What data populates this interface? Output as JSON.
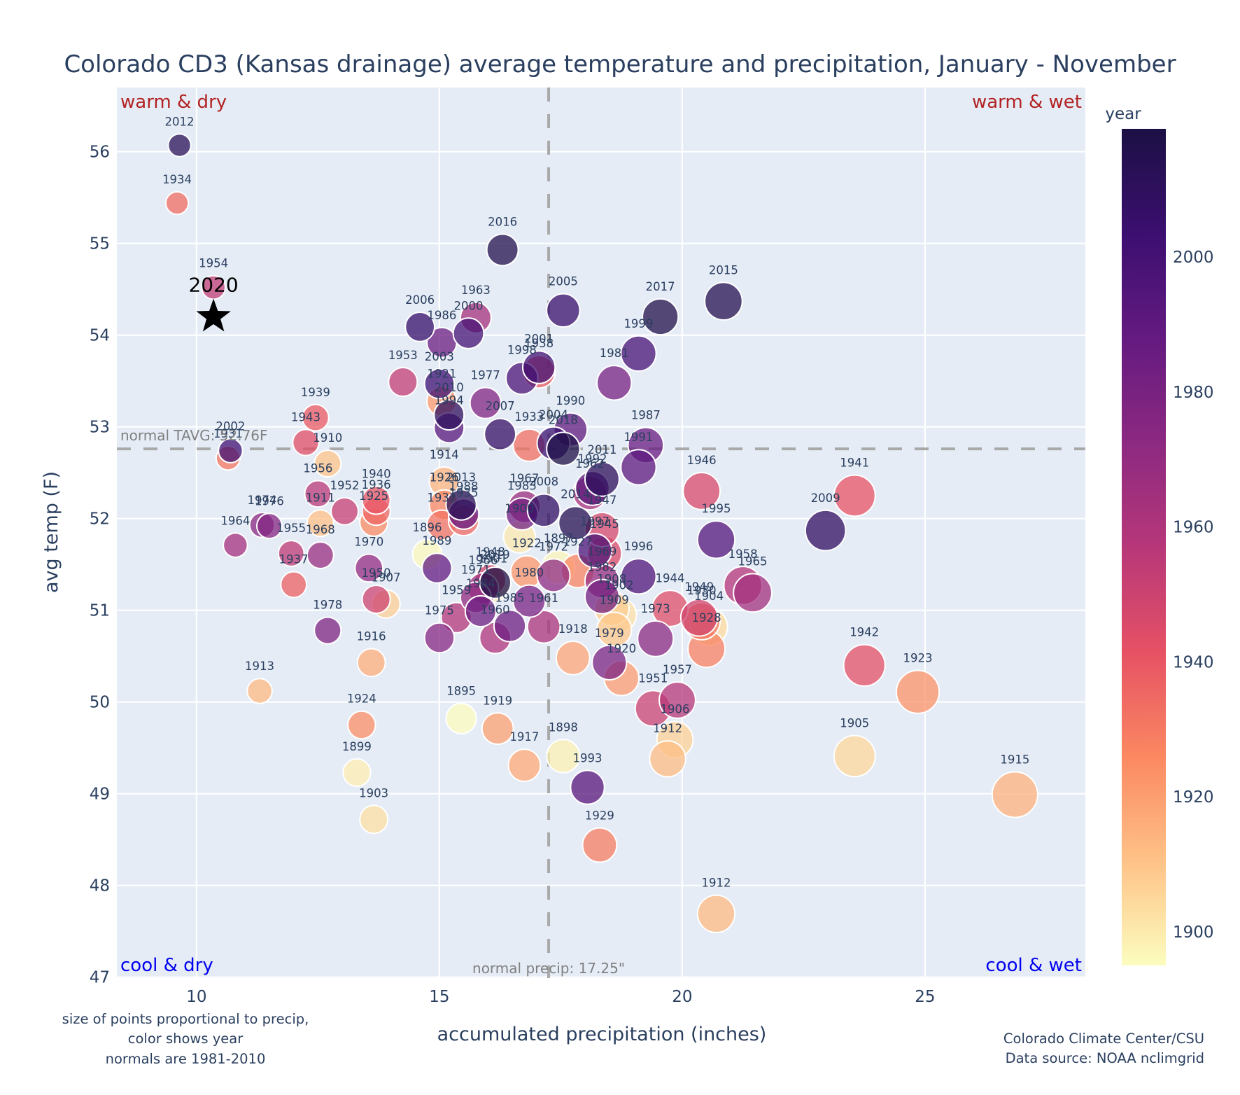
{
  "chart_data": {
    "type": "scatter",
    "title": "Colorado CD3 (Kansas drainage) average temperature and precipitation, January - November",
    "xlabel": "accumulated precipitation (inches)",
    "ylabel": "avg temp (F)",
    "xlim": [
      8.36,
      28.3
    ],
    "ylim": [
      46.99,
      56.7
    ],
    "xticks": [
      10,
      15,
      20,
      25
    ],
    "yticks": [
      47,
      48,
      49,
      50,
      51,
      52,
      53,
      54,
      55,
      56
    ],
    "grid": true,
    "marker_size_meaning": "proportional to precip",
    "color_meaning": "year",
    "colorbar": {
      "title": "year",
      "range": [
        1895,
        2019
      ],
      "ticks": [
        1900,
        1920,
        1940,
        1960,
        1980,
        2000
      ],
      "colorscale": [
        "#fcfdbf",
        "#fec287",
        "#fb8861",
        "#e65164",
        "#b73779",
        "#8c2981",
        "#641a80",
        "#3b0f70",
        "#1c1044"
      ]
    },
    "normals": {
      "tavg": 52.76,
      "tavg_label": "normal TAVG: 52.76F",
      "precip": 17.25,
      "precip_label": "normal precip: 17.25\""
    },
    "quadrant_labels": {
      "warm_dry": "warm & dry",
      "warm_wet": "warm & wet",
      "cool_dry": "cool & dry",
      "cool_wet": "cool & wet"
    },
    "highlight": {
      "label": "2020",
      "x": 10.35,
      "y": 54.2,
      "marker": "star"
    },
    "points": [
      {
        "year": 2012,
        "x": 9.65,
        "y": 56.07
      },
      {
        "year": 1934,
        "x": 9.6,
        "y": 55.44
      },
      {
        "year": 1954,
        "x": 10.35,
        "y": 54.52
      },
      {
        "year": 2002,
        "x": 10.7,
        "y": 52.74
      },
      {
        "year": 1931,
        "x": 10.65,
        "y": 52.66
      },
      {
        "year": 1964,
        "x": 10.8,
        "y": 51.71
      },
      {
        "year": 1974,
        "x": 11.35,
        "y": 51.93
      },
      {
        "year": 1976,
        "x": 11.5,
        "y": 51.92
      },
      {
        "year": 1913,
        "x": 11.3,
        "y": 50.12
      },
      {
        "year": 1955,
        "x": 11.95,
        "y": 51.62
      },
      {
        "year": 1937,
        "x": 12.0,
        "y": 51.28
      },
      {
        "year": 1939,
        "x": 12.45,
        "y": 53.1
      },
      {
        "year": 1943,
        "x": 12.25,
        "y": 52.83
      },
      {
        "year": 1910,
        "x": 12.7,
        "y": 52.6
      },
      {
        "year": 1956,
        "x": 12.5,
        "y": 52.27
      },
      {
        "year": 1911,
        "x": 12.55,
        "y": 51.95
      },
      {
        "year": 1968,
        "x": 12.55,
        "y": 51.6
      },
      {
        "year": 1978,
        "x": 12.7,
        "y": 50.78
      },
      {
        "year": 1952,
        "x": 13.05,
        "y": 52.08
      },
      {
        "year": 1940,
        "x": 13.7,
        "y": 52.2
      },
      {
        "year": 1936,
        "x": 13.7,
        "y": 52.08
      },
      {
        "year": 1925,
        "x": 13.65,
        "y": 51.96
      },
      {
        "year": 1970,
        "x": 13.55,
        "y": 51.46
      },
      {
        "year": 1950,
        "x": 13.7,
        "y": 51.12
      },
      {
        "year": 1907,
        "x": 13.9,
        "y": 51.07
      },
      {
        "year": 1916,
        "x": 13.6,
        "y": 50.43
      },
      {
        "year": 1924,
        "x": 13.4,
        "y": 49.75
      },
      {
        "year": 1899,
        "x": 13.3,
        "y": 49.23
      },
      {
        "year": 1903,
        "x": 13.65,
        "y": 48.72
      },
      {
        "year": 1953,
        "x": 14.25,
        "y": 53.49
      },
      {
        "year": 2006,
        "x": 14.6,
        "y": 54.09
      },
      {
        "year": 1932,
        "x": 15.05,
        "y": 51.93
      },
      {
        "year": 1896,
        "x": 14.75,
        "y": 51.61
      },
      {
        "year": 1989,
        "x": 14.95,
        "y": 51.46
      },
      {
        "year": 1986,
        "x": 15.05,
        "y": 53.92
      },
      {
        "year": 2003,
        "x": 15.0,
        "y": 53.47
      },
      {
        "year": 1921,
        "x": 15.05,
        "y": 53.28
      },
      {
        "year": 2010,
        "x": 15.2,
        "y": 53.13
      },
      {
        "year": 1994,
        "x": 15.2,
        "y": 52.99
      },
      {
        "year": 1914,
        "x": 15.1,
        "y": 52.4
      },
      {
        "year": 1926,
        "x": 15.1,
        "y": 52.15
      },
      {
        "year": 2013,
        "x": 15.45,
        "y": 52.15
      },
      {
        "year": 1988,
        "x": 15.5,
        "y": 52.05
      },
      {
        "year": 1935,
        "x": 15.5,
        "y": 51.98
      },
      {
        "year": 1963,
        "x": 15.75,
        "y": 54.19
      },
      {
        "year": 2000,
        "x": 15.6,
        "y": 54.02
      },
      {
        "year": 1977,
        "x": 15.95,
        "y": 53.26
      },
      {
        "year": 1975,
        "x": 15.0,
        "y": 50.7
      },
      {
        "year": 1959,
        "x": 15.35,
        "y": 50.92
      },
      {
        "year": 1971,
        "x": 15.75,
        "y": 51.14
      },
      {
        "year": 1984,
        "x": 15.85,
        "y": 50.99
      },
      {
        "year": 1966,
        "x": 15.9,
        "y": 51.24
      },
      {
        "year": 1948,
        "x": 16.05,
        "y": 51.33
      },
      {
        "year": 2019,
        "x": 16.15,
        "y": 51.3
      },
      {
        "year": 1901,
        "x": 16.1,
        "y": 51.26
      },
      {
        "year": 1985,
        "x": 16.45,
        "y": 50.83
      },
      {
        "year": 1960,
        "x": 16.15,
        "y": 50.7
      },
      {
        "year": 1895,
        "x": 15.45,
        "y": 49.82
      },
      {
        "year": 1919,
        "x": 16.2,
        "y": 49.71
      },
      {
        "year": 1917,
        "x": 16.75,
        "y": 49.31
      },
      {
        "year": 2016,
        "x": 16.3,
        "y": 54.93
      },
      {
        "year": 2007,
        "x": 16.25,
        "y": 52.92
      },
      {
        "year": 1900,
        "x": 16.65,
        "y": 51.8
      },
      {
        "year": 1967,
        "x": 16.75,
        "y": 52.13
      },
      {
        "year": 1983,
        "x": 16.7,
        "y": 52.05
      },
      {
        "year": 1922,
        "x": 16.8,
        "y": 51.42
      },
      {
        "year": 1980,
        "x": 16.85,
        "y": 51.1
      },
      {
        "year": 1998,
        "x": 16.7,
        "y": 53.53
      },
      {
        "year": 1938,
        "x": 17.05,
        "y": 53.6
      },
      {
        "year": 2001,
        "x": 17.05,
        "y": 53.65
      },
      {
        "year": 1933,
        "x": 16.85,
        "y": 52.8
      },
      {
        "year": 2004,
        "x": 17.35,
        "y": 52.82
      },
      {
        "year": 2018,
        "x": 17.55,
        "y": 52.76
      },
      {
        "year": 2008,
        "x": 17.15,
        "y": 52.09
      },
      {
        "year": 1897,
        "x": 17.45,
        "y": 51.47
      },
      {
        "year": 1972,
        "x": 17.35,
        "y": 51.38
      },
      {
        "year": 1961,
        "x": 17.15,
        "y": 50.82
      },
      {
        "year": 2005,
        "x": 17.55,
        "y": 54.27
      },
      {
        "year": 1990,
        "x": 17.7,
        "y": 52.97
      },
      {
        "year": 1927,
        "x": 17.85,
        "y": 51.43
      },
      {
        "year": 1918,
        "x": 17.75,
        "y": 50.48
      },
      {
        "year": 1898,
        "x": 17.55,
        "y": 49.41
      },
      {
        "year": 2014,
        "x": 17.8,
        "y": 51.95
      },
      {
        "year": 1997,
        "x": 18.2,
        "y": 51.65
      },
      {
        "year": 1947,
        "x": 18.35,
        "y": 51.88
      },
      {
        "year": 1945,
        "x": 18.4,
        "y": 51.62
      },
      {
        "year": 1969,
        "x": 18.35,
        "y": 51.32
      },
      {
        "year": 1982,
        "x": 18.35,
        "y": 51.15
      },
      {
        "year": 1908,
        "x": 18.55,
        "y": 51.02
      },
      {
        "year": 1902,
        "x": 18.7,
        "y": 50.95
      },
      {
        "year": 1909,
        "x": 18.6,
        "y": 50.79
      },
      {
        "year": 1979,
        "x": 18.5,
        "y": 50.43
      },
      {
        "year": 1920,
        "x": 18.75,
        "y": 50.26
      },
      {
        "year": 1993,
        "x": 18.05,
        "y": 49.07
      },
      {
        "year": 1929,
        "x": 18.3,
        "y": 48.44
      },
      {
        "year": 2011,
        "x": 18.35,
        "y": 52.43
      },
      {
        "year": 1992,
        "x": 18.15,
        "y": 52.33
      },
      {
        "year": 1962,
        "x": 18.1,
        "y": 52.28
      },
      {
        "year": 1981,
        "x": 18.6,
        "y": 53.48
      },
      {
        "year": 1999,
        "x": 19.1,
        "y": 53.8
      },
      {
        "year": 2017,
        "x": 19.55,
        "y": 54.2
      },
      {
        "year": 1987,
        "x": 19.25,
        "y": 52.8
      },
      {
        "year": 1991,
        "x": 19.1,
        "y": 52.56
      },
      {
        "year": 1996,
        "x": 19.1,
        "y": 51.37
      },
      {
        "year": 1944,
        "x": 19.75,
        "y": 51.02
      },
      {
        "year": 1973,
        "x": 19.45,
        "y": 50.69
      },
      {
        "year": 1957,
        "x": 19.9,
        "y": 50.02
      },
      {
        "year": 1951,
        "x": 19.4,
        "y": 49.93
      },
      {
        "year": 1906,
        "x": 19.85,
        "y": 49.59
      },
      {
        "year": 1912,
        "x": 19.7,
        "y": 49.38
      },
      {
        "year": 2015,
        "x": 20.85,
        "y": 54.37
      },
      {
        "year": 1946,
        "x": 20.4,
        "y": 52.3
      },
      {
        "year": 1995,
        "x": 20.7,
        "y": 51.77
      },
      {
        "year": 1949,
        "x": 20.35,
        "y": 50.92
      },
      {
        "year": 1904,
        "x": 20.55,
        "y": 50.82
      },
      {
        "year": 1930,
        "x": 20.4,
        "y": 50.88
      },
      {
        "year": 1928,
        "x": 20.5,
        "y": 50.58
      },
      {
        "year": 1941,
        "x": 23.55,
        "y": 52.25
      },
      {
        "year": 2009,
        "x": 22.95,
        "y": 51.87
      },
      {
        "year": 1958,
        "x": 21.25,
        "y": 51.27
      },
      {
        "year": 1965,
        "x": 21.45,
        "y": 51.19
      },
      {
        "year": 1942,
        "x": 23.75,
        "y": 50.4
      },
      {
        "year": 1923,
        "x": 24.85,
        "y": 50.11
      },
      {
        "year": 1905,
        "x": 23.55,
        "y": 49.41
      },
      {
        "year": 1915,
        "x": 26.85,
        "y": 48.99
      },
      {
        "year": 1912.5,
        "x": 20.7,
        "y": 47.69
      }
    ],
    "extra_labels_note": "1912 label sits above the point near 20.7, 47.69"
  },
  "notes": {
    "left_line1": "size of points proportional to precip,",
    "left_line2": "color shows year",
    "left_line3": "normals are 1981-2010",
    "credit_line1": "Colorado Climate Center/CSU",
    "credit_line2": "Data source: NOAA nclimgrid"
  }
}
